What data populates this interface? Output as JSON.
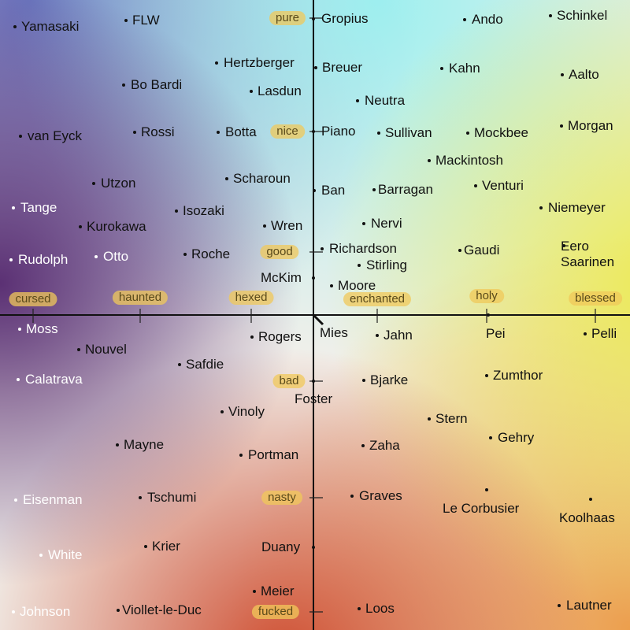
{
  "axes": {
    "x_labels": [
      "cursed",
      "haunted",
      "hexed",
      "enchanted",
      "holy",
      "blessed"
    ],
    "y_labels": [
      "pure",
      "nice",
      "good",
      "bad",
      "nasty",
      "fucked"
    ]
  },
  "nodes": [
    {
      "label": "Yamasaki"
    },
    {
      "label": "FLW"
    },
    {
      "label": "Hertzberger"
    },
    {
      "label": "Bo Bardi"
    },
    {
      "label": "Lasdun"
    },
    {
      "label": "van Eyck"
    },
    {
      "label": "Rossi"
    },
    {
      "label": "Botta"
    },
    {
      "label": "Utzon"
    },
    {
      "label": "Scharoun"
    },
    {
      "label": "Tange"
    },
    {
      "label": "Isozaki"
    },
    {
      "label": "Kurokawa"
    },
    {
      "label": "Wren"
    },
    {
      "label": "Rudolph"
    },
    {
      "label": "Otto"
    },
    {
      "label": "Roche"
    },
    {
      "label": "McKim"
    },
    {
      "label": "Gropius"
    },
    {
      "label": "Ando"
    },
    {
      "label": "Schinkel"
    },
    {
      "label": "Breuer"
    },
    {
      "label": "Kahn"
    },
    {
      "label": "Aalto"
    },
    {
      "label": "Neutra"
    },
    {
      "label": "Piano"
    },
    {
      "label": "Sullivan"
    },
    {
      "label": "Mockbee"
    },
    {
      "label": "Morgan"
    },
    {
      "label": "Mackintosh"
    },
    {
      "label": "Ban"
    },
    {
      "label": "Barragan"
    },
    {
      "label": "Venturi"
    },
    {
      "label": "Niemeyer"
    },
    {
      "label": "Nervi"
    },
    {
      "label": "Eero Saarinen"
    },
    {
      "label": "Richardson"
    },
    {
      "label": "Stirling"
    },
    {
      "label": "Gaudi"
    },
    {
      "label": "Moore"
    },
    {
      "label": "Moss"
    },
    {
      "label": "Nouvel"
    },
    {
      "label": "Calatrava"
    },
    {
      "label": "Safdie"
    },
    {
      "label": "Rogers"
    },
    {
      "label": "Vinoly"
    },
    {
      "label": "Mayne"
    },
    {
      "label": "Portman"
    },
    {
      "label": "Eisenman"
    },
    {
      "label": "Tschumi"
    },
    {
      "label": "White"
    },
    {
      "label": "Krier"
    },
    {
      "label": "Duany"
    },
    {
      "label": "Meier"
    },
    {
      "label": "Johnson"
    },
    {
      "label": "Viollet-le-Duc"
    },
    {
      "label": "Mies"
    },
    {
      "label": "Jahn"
    },
    {
      "label": "Pei"
    },
    {
      "label": "Pelli"
    },
    {
      "label": "Zumthor"
    },
    {
      "label": "Foster"
    },
    {
      "label": "Bjarke"
    },
    {
      "label": "Stern"
    },
    {
      "label": "Gehry"
    },
    {
      "label": "Zaha"
    },
    {
      "label": "Graves"
    },
    {
      "label": "Le Corbusier"
    },
    {
      "label": "Koolhaas"
    },
    {
      "label": "Loos"
    },
    {
      "label": "Lautner"
    }
  ]
}
